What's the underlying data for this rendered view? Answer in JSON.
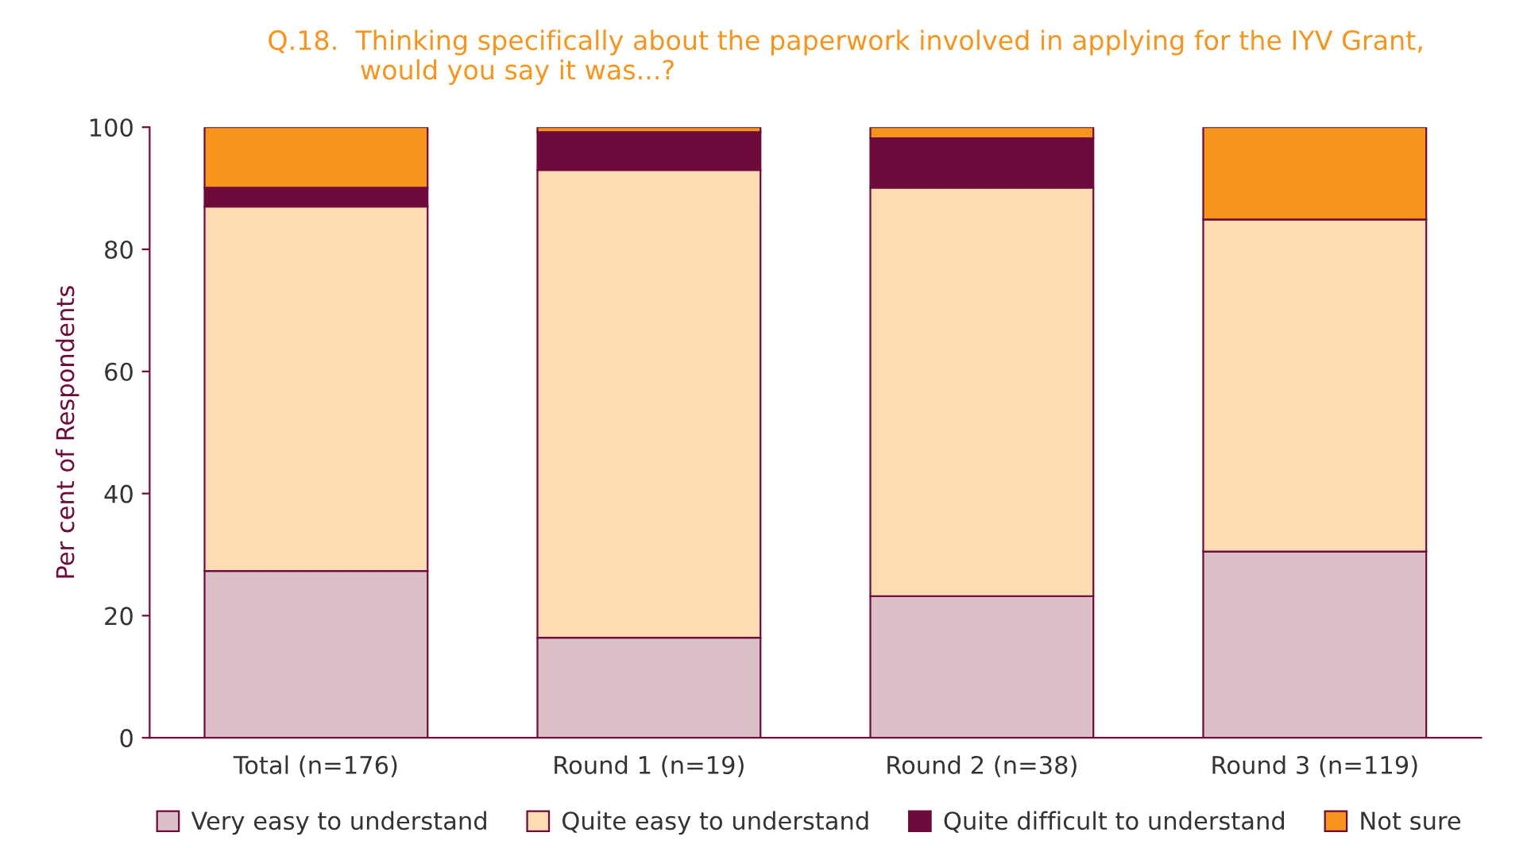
{
  "chart_data": {
    "type": "bar",
    "stacked": true,
    "title": "Q.18.  Thinking specifically about the paperwork involved in applying for the IYV Grant,\n           would you say it was...?",
    "ylabel": "Per cent of Respondents",
    "categories": [
      "Total (n=176)",
      "Round 1 (n=19)",
      "Round 2 (n=38)",
      "Round 3 (n=119)"
    ],
    "series": [
      {
        "name": "Very easy to understand",
        "color": "#dcc0c8",
        "values": [
          27.3,
          16.4,
          23.2,
          30.5
        ]
      },
      {
        "name": "Quite easy to understand",
        "color": "#fddcb3",
        "values": [
          59.7,
          76.6,
          66.9,
          54.4
        ]
      },
      {
        "name": "Quite difficult to understand",
        "color": "#6e0b3c",
        "values": [
          3.1,
          6.2,
          8.1,
          0
        ]
      },
      {
        "name": "Not sure",
        "color": "#f7941d",
        "values": [
          9.9,
          0.8,
          1.8,
          15.1
        ]
      }
    ],
    "ylim": [
      0,
      100
    ],
    "yticks": [
      0,
      20,
      40,
      60,
      80,
      100
    ],
    "grid": false,
    "legend": "bottom"
  }
}
